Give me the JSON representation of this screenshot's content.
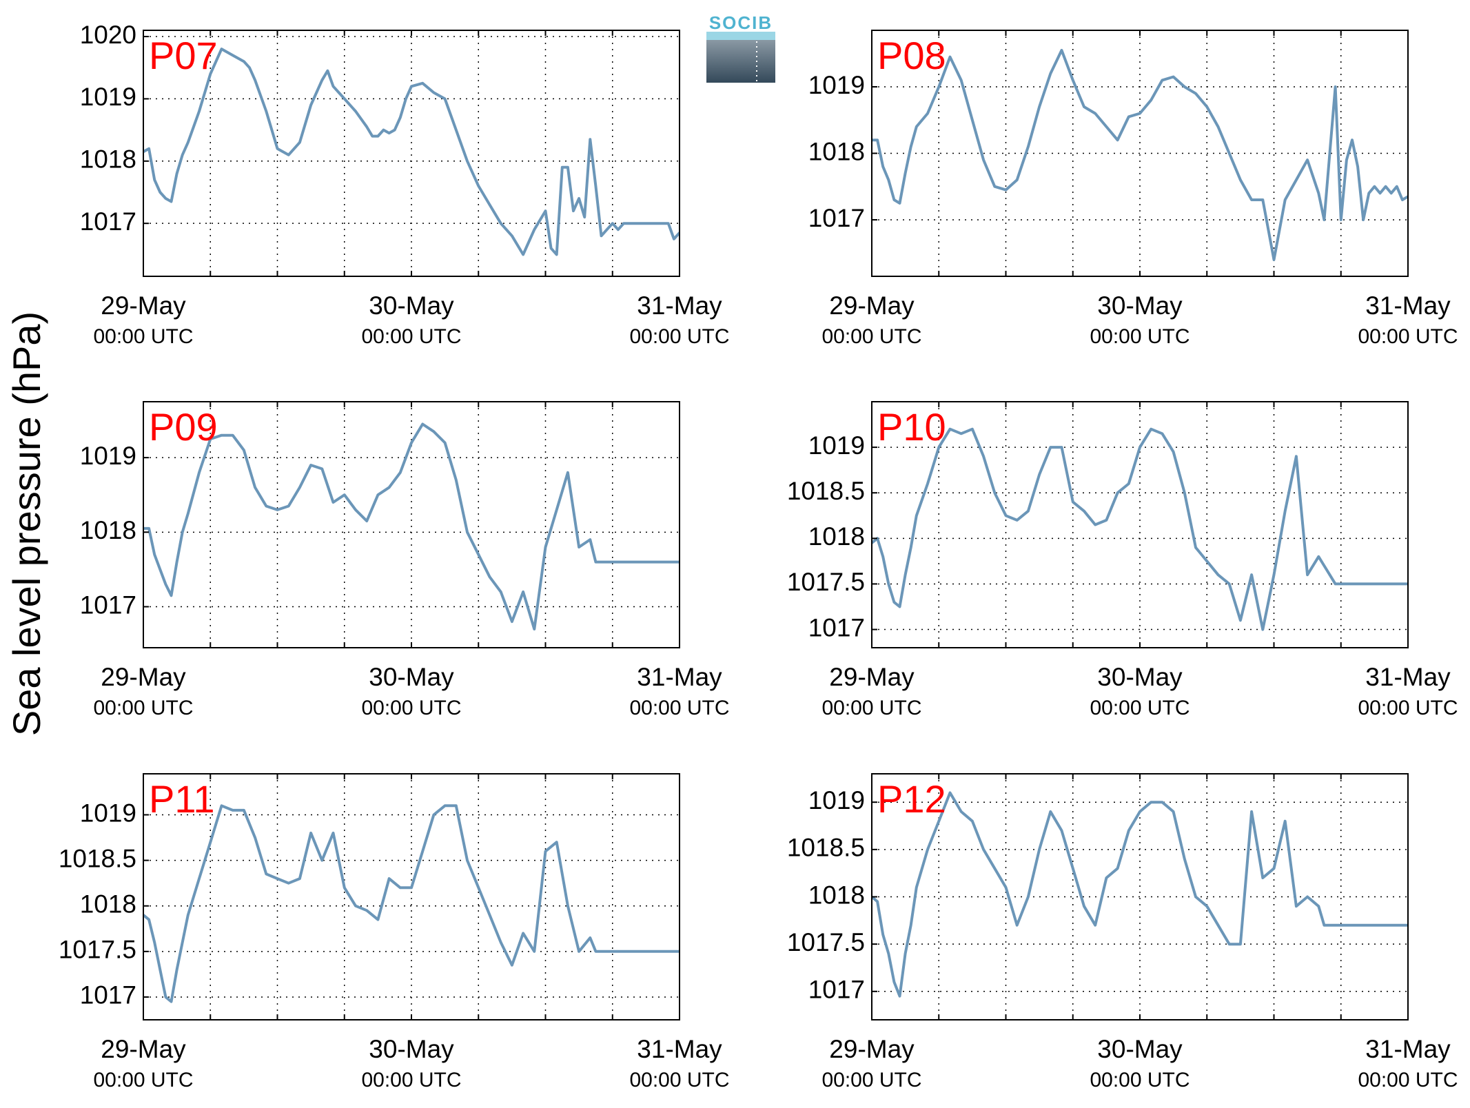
{
  "figure": {
    "ylabel": "Sea level pressure (hPa)",
    "logo_text": "SOCIB",
    "line_color": "#6b96b8",
    "title_color": "#ff0000",
    "grid": "dotted"
  },
  "chart_data": [
    {
      "type": "line",
      "title": "P07",
      "xlim": [
        0,
        48
      ],
      "ylim": [
        1016.15,
        1020.1
      ],
      "yticks": [
        1017,
        1018,
        1019,
        1020
      ],
      "ytick_labels": [
        "1017",
        "1018",
        "1019",
        "1020"
      ],
      "xticks": [
        0,
        24,
        48
      ],
      "xtick_labels": [
        [
          "29-May",
          "00:00 UTC"
        ],
        [
          "30-May",
          "00:00 UTC"
        ],
        [
          "31-May",
          "00:00 UTC"
        ]
      ],
      "series": [
        {
          "x": [
            0,
            0.5,
            1,
            1.5,
            2,
            2.5,
            3,
            3.5,
            4,
            5,
            6,
            7,
            8,
            9,
            9.5,
            10,
            11,
            12,
            13,
            14,
            15,
            16,
            16.5,
            17,
            18,
            19,
            20,
            20.5,
            21,
            21.5,
            22,
            22.5,
            23,
            23.5,
            24,
            25,
            26,
            27,
            28,
            29,
            30,
            31,
            32,
            33,
            34,
            35,
            36,
            36.5,
            37,
            37.5,
            38,
            38.5,
            39,
            39.5,
            40,
            40.5,
            41,
            41.5,
            42,
            42.5,
            43,
            43.5,
            44,
            44.5,
            45,
            45.5,
            46,
            46.5,
            47,
            47.5,
            48
          ],
          "y": [
            1018.15,
            1018.2,
            1017.7,
            1017.5,
            1017.4,
            1017.35,
            1017.8,
            1018.1,
            1018.3,
            1018.8,
            1019.4,
            1019.8,
            1019.7,
            1019.6,
            1019.5,
            1019.3,
            1018.8,
            1018.2,
            1018.1,
            1018.3,
            1018.9,
            1019.3,
            1019.45,
            1019.2,
            1019.0,
            1018.8,
            1018.55,
            1018.4,
            1018.4,
            1018.5,
            1018.45,
            1018.5,
            1018.7,
            1019.0,
            1019.2,
            1019.25,
            1019.1,
            1019.0,
            1018.5,
            1018.0,
            1017.6,
            1017.3,
            1017.0,
            1016.8,
            1016.5,
            1016.9,
            1017.2,
            1016.6,
            1016.5,
            1017.9,
            1017.9,
            1017.2,
            1017.4,
            1017.1,
            1018.35,
            1017.6,
            1016.8,
            1016.9,
            1017.0,
            1016.9,
            1017.0,
            1017.0,
            1017.0,
            1017.0,
            1017.0,
            1017.0,
            1017.0,
            1017.0,
            1017.0,
            1016.75,
            1016.85
          ]
        }
      ]
    },
    {
      "type": "line",
      "title": "P08",
      "xlim": [
        0,
        48
      ],
      "ylim": [
        1016.15,
        1019.85
      ],
      "yticks": [
        1017,
        1018,
        1019
      ],
      "ytick_labels": [
        "1017",
        "1018",
        "1019"
      ],
      "xticks": [
        0,
        24,
        48
      ],
      "xtick_labels": [
        [
          "29-May",
          "00:00 UTC"
        ],
        [
          "30-May",
          "00:00 UTC"
        ],
        [
          "31-May",
          "00:00 UTC"
        ]
      ],
      "series": [
        {
          "x": [
            0,
            0.5,
            1,
            1.5,
            2,
            2.5,
            3,
            3.5,
            4,
            5,
            6,
            7,
            8,
            9,
            10,
            11,
            12,
            13,
            14,
            15,
            16,
            17,
            18,
            19,
            20,
            21,
            22,
            23,
            24,
            25,
            26,
            27,
            28,
            29,
            30,
            31,
            32,
            33,
            34,
            35,
            36,
            37,
            38,
            39,
            40,
            40.5,
            41,
            41.5,
            42,
            42.5,
            43,
            43.5,
            44,
            44.5,
            45,
            45.5,
            46,
            46.5,
            47,
            47.5,
            48
          ],
          "y": [
            1018.2,
            1018.2,
            1017.8,
            1017.6,
            1017.3,
            1017.25,
            1017.7,
            1018.1,
            1018.4,
            1018.6,
            1019.0,
            1019.45,
            1019.1,
            1018.5,
            1017.9,
            1017.5,
            1017.45,
            1017.6,
            1018.1,
            1018.7,
            1019.2,
            1019.55,
            1019.1,
            1018.7,
            1018.6,
            1018.4,
            1018.2,
            1018.55,
            1018.6,
            1018.8,
            1019.1,
            1019.15,
            1019.0,
            1018.9,
            1018.7,
            1018.4,
            1018.0,
            1017.6,
            1017.3,
            1017.3,
            1016.4,
            1017.3,
            1017.6,
            1017.9,
            1017.4,
            1017.0,
            1018.0,
            1019.0,
            1017.0,
            1017.9,
            1018.2,
            1017.8,
            1017.0,
            1017.4,
            1017.5,
            1017.4,
            1017.5,
            1017.4,
            1017.5,
            1017.3,
            1017.35
          ]
        }
      ]
    },
    {
      "type": "line",
      "title": "P09",
      "xlim": [
        0,
        48
      ],
      "ylim": [
        1016.45,
        1019.75
      ],
      "yticks": [
        1017,
        1018,
        1019
      ],
      "ytick_labels": [
        "1017",
        "1018",
        "1019"
      ],
      "xticks": [
        0,
        24,
        48
      ],
      "xtick_labels": [
        [
          "29-May",
          "00:00 UTC"
        ],
        [
          "30-May",
          "00:00 UTC"
        ],
        [
          "31-May",
          "00:00 UTC"
        ]
      ],
      "series": [
        {
          "x": [
            0,
            0.5,
            1,
            1.5,
            2,
            2.5,
            3,
            3.5,
            4,
            5,
            6,
            7,
            8,
            9,
            10,
            11,
            12,
            13,
            14,
            15,
            16,
            17,
            18,
            19,
            20,
            21,
            22,
            23,
            24,
            25,
            26,
            27,
            28,
            29,
            30,
            31,
            32,
            33,
            34,
            35,
            36,
            37,
            38,
            39,
            40,
            40.5,
            41,
            41.5,
            42,
            42.5,
            43,
            43.5,
            44,
            44.5,
            45,
            45.5,
            46,
            46.5,
            47,
            47.5,
            48
          ],
          "y": [
            1018.05,
            1018.05,
            1017.7,
            1017.5,
            1017.3,
            1017.15,
            1017.6,
            1018.0,
            1018.25,
            1018.8,
            1019.25,
            1019.3,
            1019.3,
            1019.1,
            1018.6,
            1018.35,
            1018.3,
            1018.35,
            1018.6,
            1018.9,
            1018.85,
            1018.4,
            1018.5,
            1018.3,
            1018.15,
            1018.5,
            1018.6,
            1018.8,
            1019.2,
            1019.45,
            1019.35,
            1019.2,
            1018.7,
            1018.0,
            1017.7,
            1017.4,
            1017.2,
            1016.8,
            1017.2,
            1016.7,
            1017.8,
            1018.3,
            1018.8,
            1017.8,
            1017.9,
            1017.6,
            1017.6,
            1017.6,
            1017.6,
            1017.6,
            1017.6,
            1017.6,
            1017.6,
            1017.6,
            1017.6,
            1017.6,
            1017.6,
            1017.6,
            1017.6,
            1017.6,
            1017.6
          ]
        }
      ]
    },
    {
      "type": "line",
      "title": "P10",
      "xlim": [
        0,
        48
      ],
      "ylim": [
        1016.8,
        1019.5
      ],
      "yticks": [
        1017,
        1017.5,
        1018,
        1018.5,
        1019
      ],
      "ytick_labels": [
        "1017",
        "1017.5",
        "1018",
        "1018.5",
        "1019"
      ],
      "xticks": [
        0,
        24,
        48
      ],
      "xtick_labels": [
        [
          "29-May",
          "00:00 UTC"
        ],
        [
          "30-May",
          "00:00 UTC"
        ],
        [
          "31-May",
          "00:00 UTC"
        ]
      ],
      "series": [
        {
          "x": [
            0,
            0.5,
            1,
            1.5,
            2,
            2.5,
            3,
            3.5,
            4,
            5,
            6,
            7,
            8,
            9,
            10,
            11,
            12,
            13,
            14,
            15,
            16,
            17,
            18,
            19,
            20,
            21,
            22,
            23,
            24,
            25,
            26,
            27,
            28,
            29,
            30,
            31,
            32,
            33,
            34,
            35,
            36,
            37,
            38,
            39,
            40,
            40.5,
            41,
            41.5,
            42,
            42.5,
            43,
            43.5,
            44,
            44.5,
            45,
            45.5,
            46,
            46.5,
            47,
            47.5,
            48
          ],
          "y": [
            1017.95,
            1018.0,
            1017.8,
            1017.5,
            1017.3,
            1017.25,
            1017.6,
            1017.9,
            1018.25,
            1018.6,
            1019.0,
            1019.2,
            1019.15,
            1019.2,
            1018.9,
            1018.5,
            1018.25,
            1018.2,
            1018.3,
            1018.7,
            1019.0,
            1019.0,
            1018.4,
            1018.3,
            1018.15,
            1018.2,
            1018.5,
            1018.6,
            1019.0,
            1019.2,
            1019.15,
            1018.95,
            1018.5,
            1017.9,
            1017.75,
            1017.6,
            1017.5,
            1017.1,
            1017.6,
            1017.0,
            1017.6,
            1018.3,
            1018.9,
            1017.6,
            1017.8,
            1017.7,
            1017.6,
            1017.5,
            1017.5,
            1017.5,
            1017.5,
            1017.5,
            1017.5,
            1017.5,
            1017.5,
            1017.5,
            1017.5,
            1017.5,
            1017.5,
            1017.5,
            1017.5
          ]
        }
      ]
    },
    {
      "type": "line",
      "title": "P11",
      "xlim": [
        0,
        48
      ],
      "ylim": [
        1016.75,
        1019.45
      ],
      "yticks": [
        1017,
        1017.5,
        1018,
        1018.5,
        1019
      ],
      "ytick_labels": [
        "1017",
        "1017.5",
        "1018",
        "1018.5",
        "1019"
      ],
      "xticks": [
        0,
        24,
        48
      ],
      "xtick_labels": [
        [
          "29-May",
          "00:00 UTC"
        ],
        [
          "30-May",
          "00:00 UTC"
        ],
        [
          "31-May",
          "00:00 UTC"
        ]
      ],
      "series": [
        {
          "x": [
            0,
            0.5,
            1,
            1.5,
            2,
            2.5,
            3,
            3.5,
            4,
            5,
            6,
            7,
            8,
            9,
            10,
            11,
            12,
            13,
            14,
            15,
            16,
            17,
            18,
            19,
            20,
            21,
            22,
            23,
            24,
            25,
            26,
            27,
            28,
            29,
            30,
            31,
            32,
            33,
            34,
            35,
            36,
            37,
            38,
            39,
            40,
            40.5,
            41,
            41.5,
            42,
            42.5,
            43,
            43.5,
            44,
            44.5,
            45,
            45.5,
            46,
            46.5,
            47,
            47.5,
            48
          ],
          "y": [
            1017.9,
            1017.85,
            1017.6,
            1017.3,
            1017.0,
            1016.95,
            1017.3,
            1017.6,
            1017.9,
            1018.3,
            1018.7,
            1019.1,
            1019.05,
            1019.05,
            1018.75,
            1018.35,
            1018.3,
            1018.25,
            1018.3,
            1018.8,
            1018.5,
            1018.8,
            1018.2,
            1018.0,
            1017.95,
            1017.85,
            1018.3,
            1018.2,
            1018.2,
            1018.6,
            1019.0,
            1019.1,
            1019.1,
            1018.5,
            1018.2,
            1017.9,
            1017.6,
            1017.35,
            1017.7,
            1017.5,
            1018.6,
            1018.7,
            1018.0,
            1017.5,
            1017.65,
            1017.5,
            1017.5,
            1017.5,
            1017.5,
            1017.5,
            1017.5,
            1017.5,
            1017.5,
            1017.5,
            1017.5,
            1017.5,
            1017.5,
            1017.5,
            1017.5,
            1017.5,
            1017.5
          ]
        }
      ]
    },
    {
      "type": "line",
      "title": "P12",
      "xlim": [
        0,
        48
      ],
      "ylim": [
        1016.7,
        1019.3
      ],
      "yticks": [
        1017,
        1017.5,
        1018,
        1018.5,
        1019
      ],
      "ytick_labels": [
        "1017",
        "1017.5",
        "1018",
        "1018.5",
        "1019"
      ],
      "xticks": [
        0,
        24,
        48
      ],
      "xtick_labels": [
        [
          "29-May",
          "00:00 UTC"
        ],
        [
          "30-May",
          "00:00 UTC"
        ],
        [
          "31-May",
          "00:00 UTC"
        ]
      ],
      "series": [
        {
          "x": [
            0,
            0.5,
            1,
            1.5,
            2,
            2.5,
            3,
            3.5,
            4,
            5,
            6,
            7,
            8,
            9,
            10,
            11,
            12,
            13,
            14,
            15,
            16,
            17,
            18,
            19,
            20,
            21,
            22,
            23,
            24,
            25,
            26,
            27,
            28,
            29,
            30,
            31,
            32,
            33,
            34,
            35,
            36,
            37,
            38,
            39,
            40,
            40.5,
            41,
            41.5,
            42,
            42.5,
            43,
            43.5,
            44,
            44.5,
            45,
            45.5,
            46,
            46.5,
            47,
            47.5,
            48
          ],
          "y": [
            1018.0,
            1017.95,
            1017.6,
            1017.4,
            1017.1,
            1016.95,
            1017.4,
            1017.7,
            1018.1,
            1018.5,
            1018.8,
            1019.1,
            1018.9,
            1018.8,
            1018.5,
            1018.3,
            1018.1,
            1017.7,
            1018.0,
            1018.5,
            1018.9,
            1018.7,
            1018.3,
            1017.9,
            1017.7,
            1018.2,
            1018.3,
            1018.7,
            1018.9,
            1019.0,
            1019.0,
            1018.9,
            1018.4,
            1018.0,
            1017.9,
            1017.7,
            1017.5,
            1017.5,
            1018.9,
            1018.2,
            1018.3,
            1018.8,
            1017.9,
            1018.0,
            1017.9,
            1017.7,
            1017.7,
            1017.7,
            1017.7,
            1017.7,
            1017.7,
            1017.7,
            1017.7,
            1017.7,
            1017.7,
            1017.7,
            1017.7,
            1017.7,
            1017.7,
            1017.7,
            1017.7
          ]
        }
      ]
    }
  ]
}
